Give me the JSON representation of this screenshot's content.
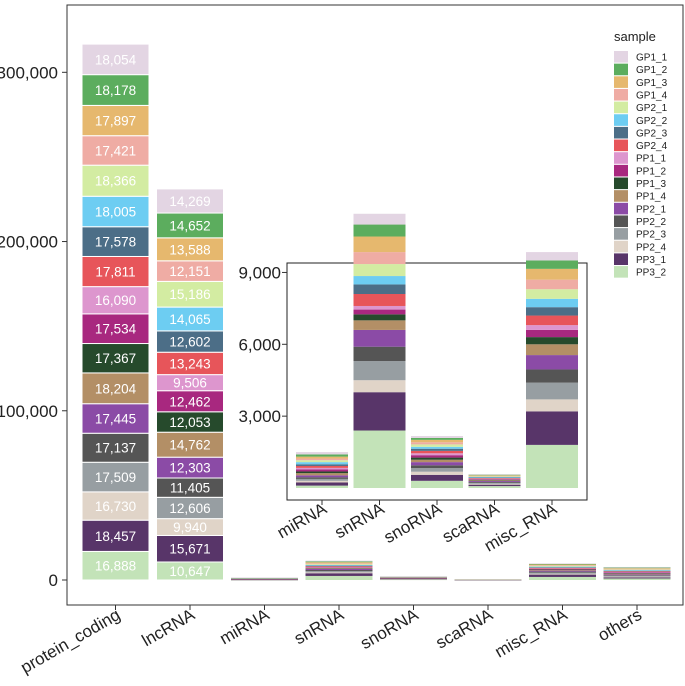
{
  "chart_data": {
    "type": "bar",
    "stacked": true,
    "main": {
      "categories": [
        "protein_coding",
        "lncRNA",
        "miRNA",
        "snRNA",
        "snoRNA",
        "scaRNA",
        "misc_RNA",
        "others"
      ],
      "ylim": [
        0,
        325000
      ],
      "yticks": [
        0,
        100000,
        200000,
        300000
      ],
      "ytick_labels": [
        "0",
        "100,000",
        "200,000",
        "300,000"
      ],
      "series_order": [
        "PP3_2",
        "PP3_1",
        "PP2_4",
        "PP2_3",
        "PP2_2",
        "PP2_1",
        "PP1_4",
        "PP1_3",
        "PP1_2",
        "PP1_1",
        "GP2_4",
        "GP2_3",
        "GP2_2",
        "GP2_1",
        "GP1_4",
        "GP1_3",
        "GP1_2",
        "GP1_1"
      ],
      "stacks": {
        "protein_coding": [
          16888,
          18457,
          16730,
          17509,
          17137,
          17445,
          18204,
          17367,
          17534,
          16090,
          17811,
          17578,
          18005,
          18366,
          17421,
          17897,
          18178,
          18054
        ],
        "lncRNA": [
          10647,
          15671,
          9940,
          12606,
          11405,
          12303,
          14762,
          12053,
          12462,
          9506,
          13243,
          12602,
          14065,
          15186,
          12151,
          13588,
          14652,
          14269
        ],
        "miRNA": [
          100,
          130,
          70,
          80,
          70,
          80,
          90,
          70,
          90,
          60,
          80,
          70,
          90,
          80,
          70,
          80,
          90,
          100
        ],
        "snRNA": [
          2400,
          1600,
          500,
          800,
          600,
          700,
          400,
          250,
          200,
          150,
          500,
          400,
          350,
          500,
          500,
          650,
          500,
          450
        ],
        "snoRNA": [
          300,
          250,
          130,
          150,
          120,
          130,
          100,
          90,
          100,
          80,
          100,
          90,
          80,
          100,
          90,
          100,
          80,
          80
        ],
        "scaRNA": [
          80,
          60,
          35,
          40,
          35,
          40,
          30,
          25,
          25,
          20,
          25,
          20,
          25,
          25,
          20,
          25,
          25,
          25
        ],
        "misc_RNA": [
          1800,
          1400,
          500,
          700,
          550,
          600,
          450,
          300,
          300,
          200,
          400,
          350,
          350,
          400,
          400,
          450,
          350,
          350
        ],
        "others": [
          900,
          700,
          400,
          450,
          400,
          450,
          400,
          350,
          400,
          300,
          400,
          350,
          350,
          400,
          350,
          400,
          350,
          350
        ]
      },
      "labeled_categories": [
        "protein_coding",
        "lncRNA"
      ]
    },
    "inset": {
      "categories": [
        "miRNA",
        "snRNA",
        "snoRNA",
        "scaRNA",
        "misc_RNA"
      ],
      "ylim": [
        0,
        10000
      ],
      "yticks": [
        3000,
        6000,
        9000
      ],
      "ytick_labels": [
        "3,000",
        "6,000",
        "9,000"
      ]
    },
    "legend": {
      "title": "sample",
      "position": "top-right",
      "entries": [
        "GP1_1",
        "GP1_2",
        "GP1_3",
        "GP1_4",
        "GP2_1",
        "GP2_2",
        "GP2_3",
        "GP2_4",
        "PP1_1",
        "PP1_2",
        "PP1_3",
        "PP1_4",
        "PP2_1",
        "PP2_2",
        "PP2_3",
        "PP2_4",
        "PP3_1",
        "PP3_2"
      ]
    },
    "colors": {
      "GP1_1": "#e3d5e3",
      "GP1_2": "#5cad5e",
      "GP1_3": "#e6b86e",
      "GP1_4": "#efaca4",
      "GP2_1": "#d3eca2",
      "GP2_2": "#6dcdf2",
      "GP2_3": "#4c6e87",
      "GP2_4": "#e7555a",
      "PP1_1": "#dd96ce",
      "PP1_2": "#a8287f",
      "PP1_3": "#264a2c",
      "PP1_4": "#b38f66",
      "PP2_1": "#8b4ba6",
      "PP2_2": "#555555",
      "PP2_3": "#979ea2",
      "PP2_4": "#e0d4c8",
      "PP3_1": "#583569",
      "PP3_2": "#c3e3b8"
    }
  }
}
